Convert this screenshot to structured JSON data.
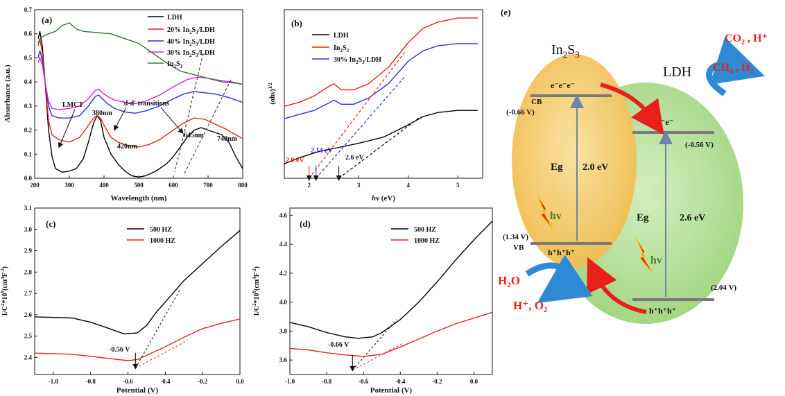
{
  "chart_data": [
    {
      "panel": "(a)",
      "type": "line",
      "xlabel": "Wavelength (nm)",
      "ylabel": "Absorbance (a.u.)",
      "xlim": [
        200,
        800
      ],
      "ylim": [
        0.0,
        0.7
      ],
      "xticks": [
        200,
        300,
        400,
        500,
        600,
        700,
        800
      ],
      "yticks": [
        0.0,
        0.1,
        0.2,
        0.3,
        0.4,
        0.5,
        0.6,
        0.7
      ],
      "legend_position": "top-right",
      "series": [
        {
          "name": "LDH",
          "color": "#000000",
          "points": [
            [
              210,
              0.58
            ],
            [
              215,
              0.61
            ],
            [
              222,
              0.55
            ],
            [
              230,
              0.4
            ],
            [
              240,
              0.2
            ],
            [
              250,
              0.09
            ],
            [
              260,
              0.04
            ],
            [
              280,
              0.025
            ],
            [
              300,
              0.03
            ],
            [
              320,
              0.04
            ],
            [
              340,
              0.08
            ],
            [
              355,
              0.15
            ],
            [
              370,
              0.23
            ],
            [
              380,
              0.26
            ],
            [
              390,
              0.24
            ],
            [
              400,
              0.17
            ],
            [
              420,
              0.1
            ],
            [
              440,
              0.06
            ],
            [
              460,
              0.03
            ],
            [
              480,
              0.01
            ],
            [
              500,
              0.005
            ],
            [
              520,
              0.01
            ],
            [
              550,
              0.03
            ],
            [
              580,
              0.06
            ],
            [
              600,
              0.09
            ],
            [
              620,
              0.13
            ],
            [
              640,
              0.17
            ],
            [
              660,
              0.2
            ],
            [
              680,
              0.21
            ],
            [
              700,
              0.2
            ],
            [
              720,
              0.19
            ],
            [
              740,
              0.18
            ],
            [
              760,
              0.15
            ],
            [
              780,
              0.09
            ],
            [
              800,
              0.04
            ]
          ]
        },
        {
          "name": "20% In2S3/LDH",
          "color": "#e8201c",
          "points": [
            [
              210,
              0.55
            ],
            [
              215,
              0.58
            ],
            [
              222,
              0.52
            ],
            [
              230,
              0.4
            ],
            [
              240,
              0.24
            ],
            [
              250,
              0.18
            ],
            [
              270,
              0.16
            ],
            [
              300,
              0.15
            ],
            [
              330,
              0.17
            ],
            [
              350,
              0.21
            ],
            [
              370,
              0.25
            ],
            [
              380,
              0.26
            ],
            [
              390,
              0.25
            ],
            [
              400,
              0.22
            ],
            [
              420,
              0.17
            ],
            [
              440,
              0.15
            ],
            [
              470,
              0.135
            ],
            [
              500,
              0.13
            ],
            [
              530,
              0.14
            ],
            [
              560,
              0.16
            ],
            [
              600,
              0.2
            ],
            [
              630,
              0.23
            ],
            [
              660,
              0.25
            ],
            [
              690,
              0.245
            ],
            [
              720,
              0.225
            ],
            [
              750,
              0.205
            ],
            [
              780,
              0.18
            ],
            [
              800,
              0.165
            ]
          ]
        },
        {
          "name": "40% In2S3/LDH",
          "color": "#2a2ae0",
          "points": [
            [
              210,
              0.5
            ],
            [
              215,
              0.53
            ],
            [
              222,
              0.49
            ],
            [
              230,
              0.4
            ],
            [
              240,
              0.3
            ],
            [
              250,
              0.26
            ],
            [
              270,
              0.25
            ],
            [
              300,
              0.25
            ],
            [
              330,
              0.26
            ],
            [
              355,
              0.3
            ],
            [
              375,
              0.34
            ],
            [
              385,
              0.345
            ],
            [
              395,
              0.33
            ],
            [
              410,
              0.31
            ],
            [
              430,
              0.29
            ],
            [
              460,
              0.275
            ],
            [
              490,
              0.27
            ],
            [
              520,
              0.28
            ],
            [
              560,
              0.3
            ],
            [
              600,
              0.33
            ],
            [
              630,
              0.35
            ],
            [
              660,
              0.36
            ],
            [
              690,
              0.355
            ],
            [
              720,
              0.35
            ],
            [
              760,
              0.335
            ],
            [
              800,
              0.315
            ]
          ]
        },
        {
          "name": "30% In2S3/LDH",
          "color": "#e020e0",
          "points": [
            [
              210,
              0.48
            ],
            [
              215,
              0.5
            ],
            [
              222,
              0.47
            ],
            [
              230,
              0.4
            ],
            [
              240,
              0.32
            ],
            [
              250,
              0.29
            ],
            [
              270,
              0.285
            ],
            [
              300,
              0.29
            ],
            [
              330,
              0.3
            ],
            [
              355,
              0.33
            ],
            [
              375,
              0.365
            ],
            [
              385,
              0.37
            ],
            [
              395,
              0.355
            ],
            [
              410,
              0.34
            ],
            [
              430,
              0.325
            ],
            [
              460,
              0.315
            ],
            [
              490,
              0.31
            ],
            [
              520,
              0.32
            ],
            [
              560,
              0.345
            ],
            [
              600,
              0.38
            ],
            [
              640,
              0.41
            ],
            [
              670,
              0.42
            ],
            [
              700,
              0.415
            ],
            [
              740,
              0.405
            ],
            [
              770,
              0.4
            ],
            [
              800,
              0.39
            ]
          ]
        },
        {
          "name": "In2S3",
          "color": "#2e7a2e",
          "points": [
            [
              210,
              0.56
            ],
            [
              215,
              0.58
            ],
            [
              225,
              0.59
            ],
            [
              240,
              0.6
            ],
            [
              260,
              0.61
            ],
            [
              280,
              0.635
            ],
            [
              300,
              0.645
            ],
            [
              320,
              0.62
            ],
            [
              340,
              0.61
            ],
            [
              380,
              0.605
            ],
            [
              420,
              0.6
            ],
            [
              460,
              0.58
            ],
            [
              500,
              0.56
            ],
            [
              540,
              0.52
            ],
            [
              580,
              0.48
            ],
            [
              620,
              0.445
            ],
            [
              660,
              0.43
            ],
            [
              700,
              0.415
            ],
            [
              740,
              0.4
            ],
            [
              780,
              0.395
            ],
            [
              800,
              0.39
            ]
          ]
        }
      ],
      "annotations": [
        "LMCT",
        "'d-d' transitions",
        "380nm",
        "420nm",
        "645nm",
        "740nm"
      ]
    },
    {
      "panel": "(b)",
      "type": "line",
      "xlabel": "hν (eV)",
      "ylabel": "(αhν)^1/2",
      "xlim": [
        1.5,
        5.5
      ],
      "xticks": [
        2,
        3,
        4,
        5
      ],
      "legend_position": "top-left",
      "series": [
        {
          "name": "LDH",
          "color": "#000000",
          "points": [
            [
              1.5,
              0.07
            ],
            [
              1.8,
              0.1
            ],
            [
              2.2,
              0.13
            ],
            [
              2.6,
              0.15
            ],
            [
              3.0,
              0.17
            ],
            [
              3.5,
              0.2
            ],
            [
              4.0,
              0.26
            ],
            [
              4.3,
              0.3
            ],
            [
              4.6,
              0.32
            ],
            [
              5.0,
              0.33
            ],
            [
              5.4,
              0.33
            ]
          ]
        },
        {
          "name": "In2S3",
          "color": "#e8201c",
          "points": [
            [
              1.5,
              0.35
            ],
            [
              1.8,
              0.37
            ],
            [
              2.1,
              0.4
            ],
            [
              2.35,
              0.44
            ],
            [
              2.5,
              0.46
            ],
            [
              2.65,
              0.43
            ],
            [
              2.9,
              0.43
            ],
            [
              3.2,
              0.46
            ],
            [
              3.6,
              0.54
            ],
            [
              4.0,
              0.66
            ],
            [
              4.3,
              0.73
            ],
            [
              4.6,
              0.76
            ],
            [
              5.0,
              0.78
            ],
            [
              5.4,
              0.78
            ]
          ]
        },
        {
          "name": "30% In2S3/LDH",
          "color": "#2a2ae0",
          "points": [
            [
              1.5,
              0.29
            ],
            [
              1.8,
              0.31
            ],
            [
              2.1,
              0.33
            ],
            [
              2.35,
              0.36
            ],
            [
              2.5,
              0.38
            ],
            [
              2.65,
              0.36
            ],
            [
              2.9,
              0.36
            ],
            [
              3.2,
              0.39
            ],
            [
              3.6,
              0.46
            ],
            [
              4.0,
              0.57
            ],
            [
              4.3,
              0.62
            ],
            [
              4.6,
              0.645
            ],
            [
              5.0,
              0.655
            ],
            [
              5.4,
              0.655
            ]
          ]
        }
      ],
      "annotations": [
        "2.0 eV",
        "2.14 eV",
        "2.6 eV"
      ]
    },
    {
      "panel": "(c)",
      "type": "line",
      "xlabel": "Potential (V)",
      "ylabel": "1/C^2*10^9(cm^4F^-2)",
      "xlim": [
        -1.1,
        0.0
      ],
      "ylim": [
        2.32,
        3.1
      ],
      "xticks": [
        -1.0,
        -0.8,
        -0.6,
        -0.4,
        -0.2,
        0.0
      ],
      "yticks": [
        2.4,
        2.5,
        2.6,
        2.7,
        2.8,
        2.9,
        3.0,
        3.1
      ],
      "legend_position": "top-center",
      "series": [
        {
          "name": "500 HZ",
          "color": "#000000",
          "points": [
            [
              -1.1,
              2.59
            ],
            [
              -0.9,
              2.585
            ],
            [
              -0.8,
              2.565
            ],
            [
              -0.7,
              2.535
            ],
            [
              -0.62,
              2.51
            ],
            [
              -0.55,
              2.515
            ],
            [
              -0.5,
              2.55
            ],
            [
              -0.45,
              2.61
            ],
            [
              -0.4,
              2.66
            ],
            [
              -0.3,
              2.76
            ],
            [
              -0.2,
              2.84
            ],
            [
              -0.1,
              2.92
            ],
            [
              0.0,
              2.995
            ]
          ]
        },
        {
          "name": "1000 HZ",
          "color": "#e8201c",
          "points": [
            [
              -1.1,
              2.42
            ],
            [
              -0.9,
              2.415
            ],
            [
              -0.8,
              2.405
            ],
            [
              -0.7,
              2.395
            ],
            [
              -0.6,
              2.385
            ],
            [
              -0.55,
              2.39
            ],
            [
              -0.5,
              2.41
            ],
            [
              -0.4,
              2.45
            ],
            [
              -0.3,
              2.495
            ],
            [
              -0.2,
              2.535
            ],
            [
              -0.1,
              2.56
            ],
            [
              0.0,
              2.58
            ]
          ]
        }
      ],
      "annotations": [
        "-0.56 V"
      ]
    },
    {
      "panel": "(d)",
      "type": "line",
      "xlabel": "Potential (V)",
      "ylabel": "1/C^2*10^9(cm^4F^-2)",
      "xlim": [
        -1.0,
        0.1
      ],
      "ylim": [
        3.5,
        4.65
      ],
      "xticks": [
        -1.0,
        -0.8,
        -0.6,
        -0.4,
        -0.2,
        0.0
      ],
      "yticks": [
        3.6,
        3.8,
        4.0,
        4.2,
        4.4,
        4.6
      ],
      "legend_position": "top-center",
      "series": [
        {
          "name": "500 HZ",
          "color": "#000000",
          "points": [
            [
              -1.0,
              3.86
            ],
            [
              -0.9,
              3.83
            ],
            [
              -0.8,
              3.79
            ],
            [
              -0.7,
              3.76
            ],
            [
              -0.63,
              3.75
            ],
            [
              -0.55,
              3.76
            ],
            [
              -0.5,
              3.79
            ],
            [
              -0.4,
              3.88
            ],
            [
              -0.3,
              4.0
            ],
            [
              -0.2,
              4.14
            ],
            [
              -0.1,
              4.29
            ],
            [
              0.0,
              4.43
            ],
            [
              0.1,
              4.56
            ]
          ]
        },
        {
          "name": "1000 HZ",
          "color": "#e8201c",
          "points": [
            [
              -1.0,
              3.68
            ],
            [
              -0.9,
              3.67
            ],
            [
              -0.8,
              3.65
            ],
            [
              -0.7,
              3.635
            ],
            [
              -0.6,
              3.625
            ],
            [
              -0.5,
              3.64
            ],
            [
              -0.4,
              3.69
            ],
            [
              -0.3,
              3.745
            ],
            [
              -0.2,
              3.8
            ],
            [
              -0.1,
              3.85
            ],
            [
              0.0,
              3.89
            ],
            [
              0.1,
              3.93
            ]
          ]
        }
      ],
      "annotations": [
        "-0.66 V"
      ]
    }
  ],
  "scheme": {
    "panel_label": "(e)",
    "in2s3": {
      "name": "In",
      "sub": "2",
      "name2": "S",
      "sub2": "3",
      "cb_label": "CB",
      "cb_potential": "(-0.66 V)",
      "vb_label": "VB",
      "vb_potential": "(1.34 V)",
      "electrons": "e⁻e⁻e⁻",
      "holes": "h⁺h⁺h⁺",
      "eg_label": "Eg",
      "eg_value": "2.0 eV",
      "hv": "hv",
      "color": "#f3c560"
    },
    "ldh": {
      "name": "LDH",
      "cb_potential": "(-0.56 V)",
      "vb_potential": "(2.04 V)",
      "electrons": "e⁻e⁻e⁻",
      "holes": "h⁺h⁺h⁺",
      "eg_label": "Eg",
      "eg_value": "2.6 eV",
      "hv": "hv",
      "color": "#a9d98b"
    },
    "reactants_top": {
      "a": "CO",
      "a_sub": "2",
      "b": " , H⁺"
    },
    "products_top": {
      "a": "CH",
      "a_sub": "4",
      "b": " , H",
      "b_sub": "2"
    },
    "reactant_bottom": {
      "a": "H",
      "a_sub": "2",
      "b": "O"
    },
    "product_bottom": "H⁺, O",
    "product_bottom_sub": "2",
    "accent_red": "#e8201c",
    "accent_blue": "#2f8ad6"
  }
}
